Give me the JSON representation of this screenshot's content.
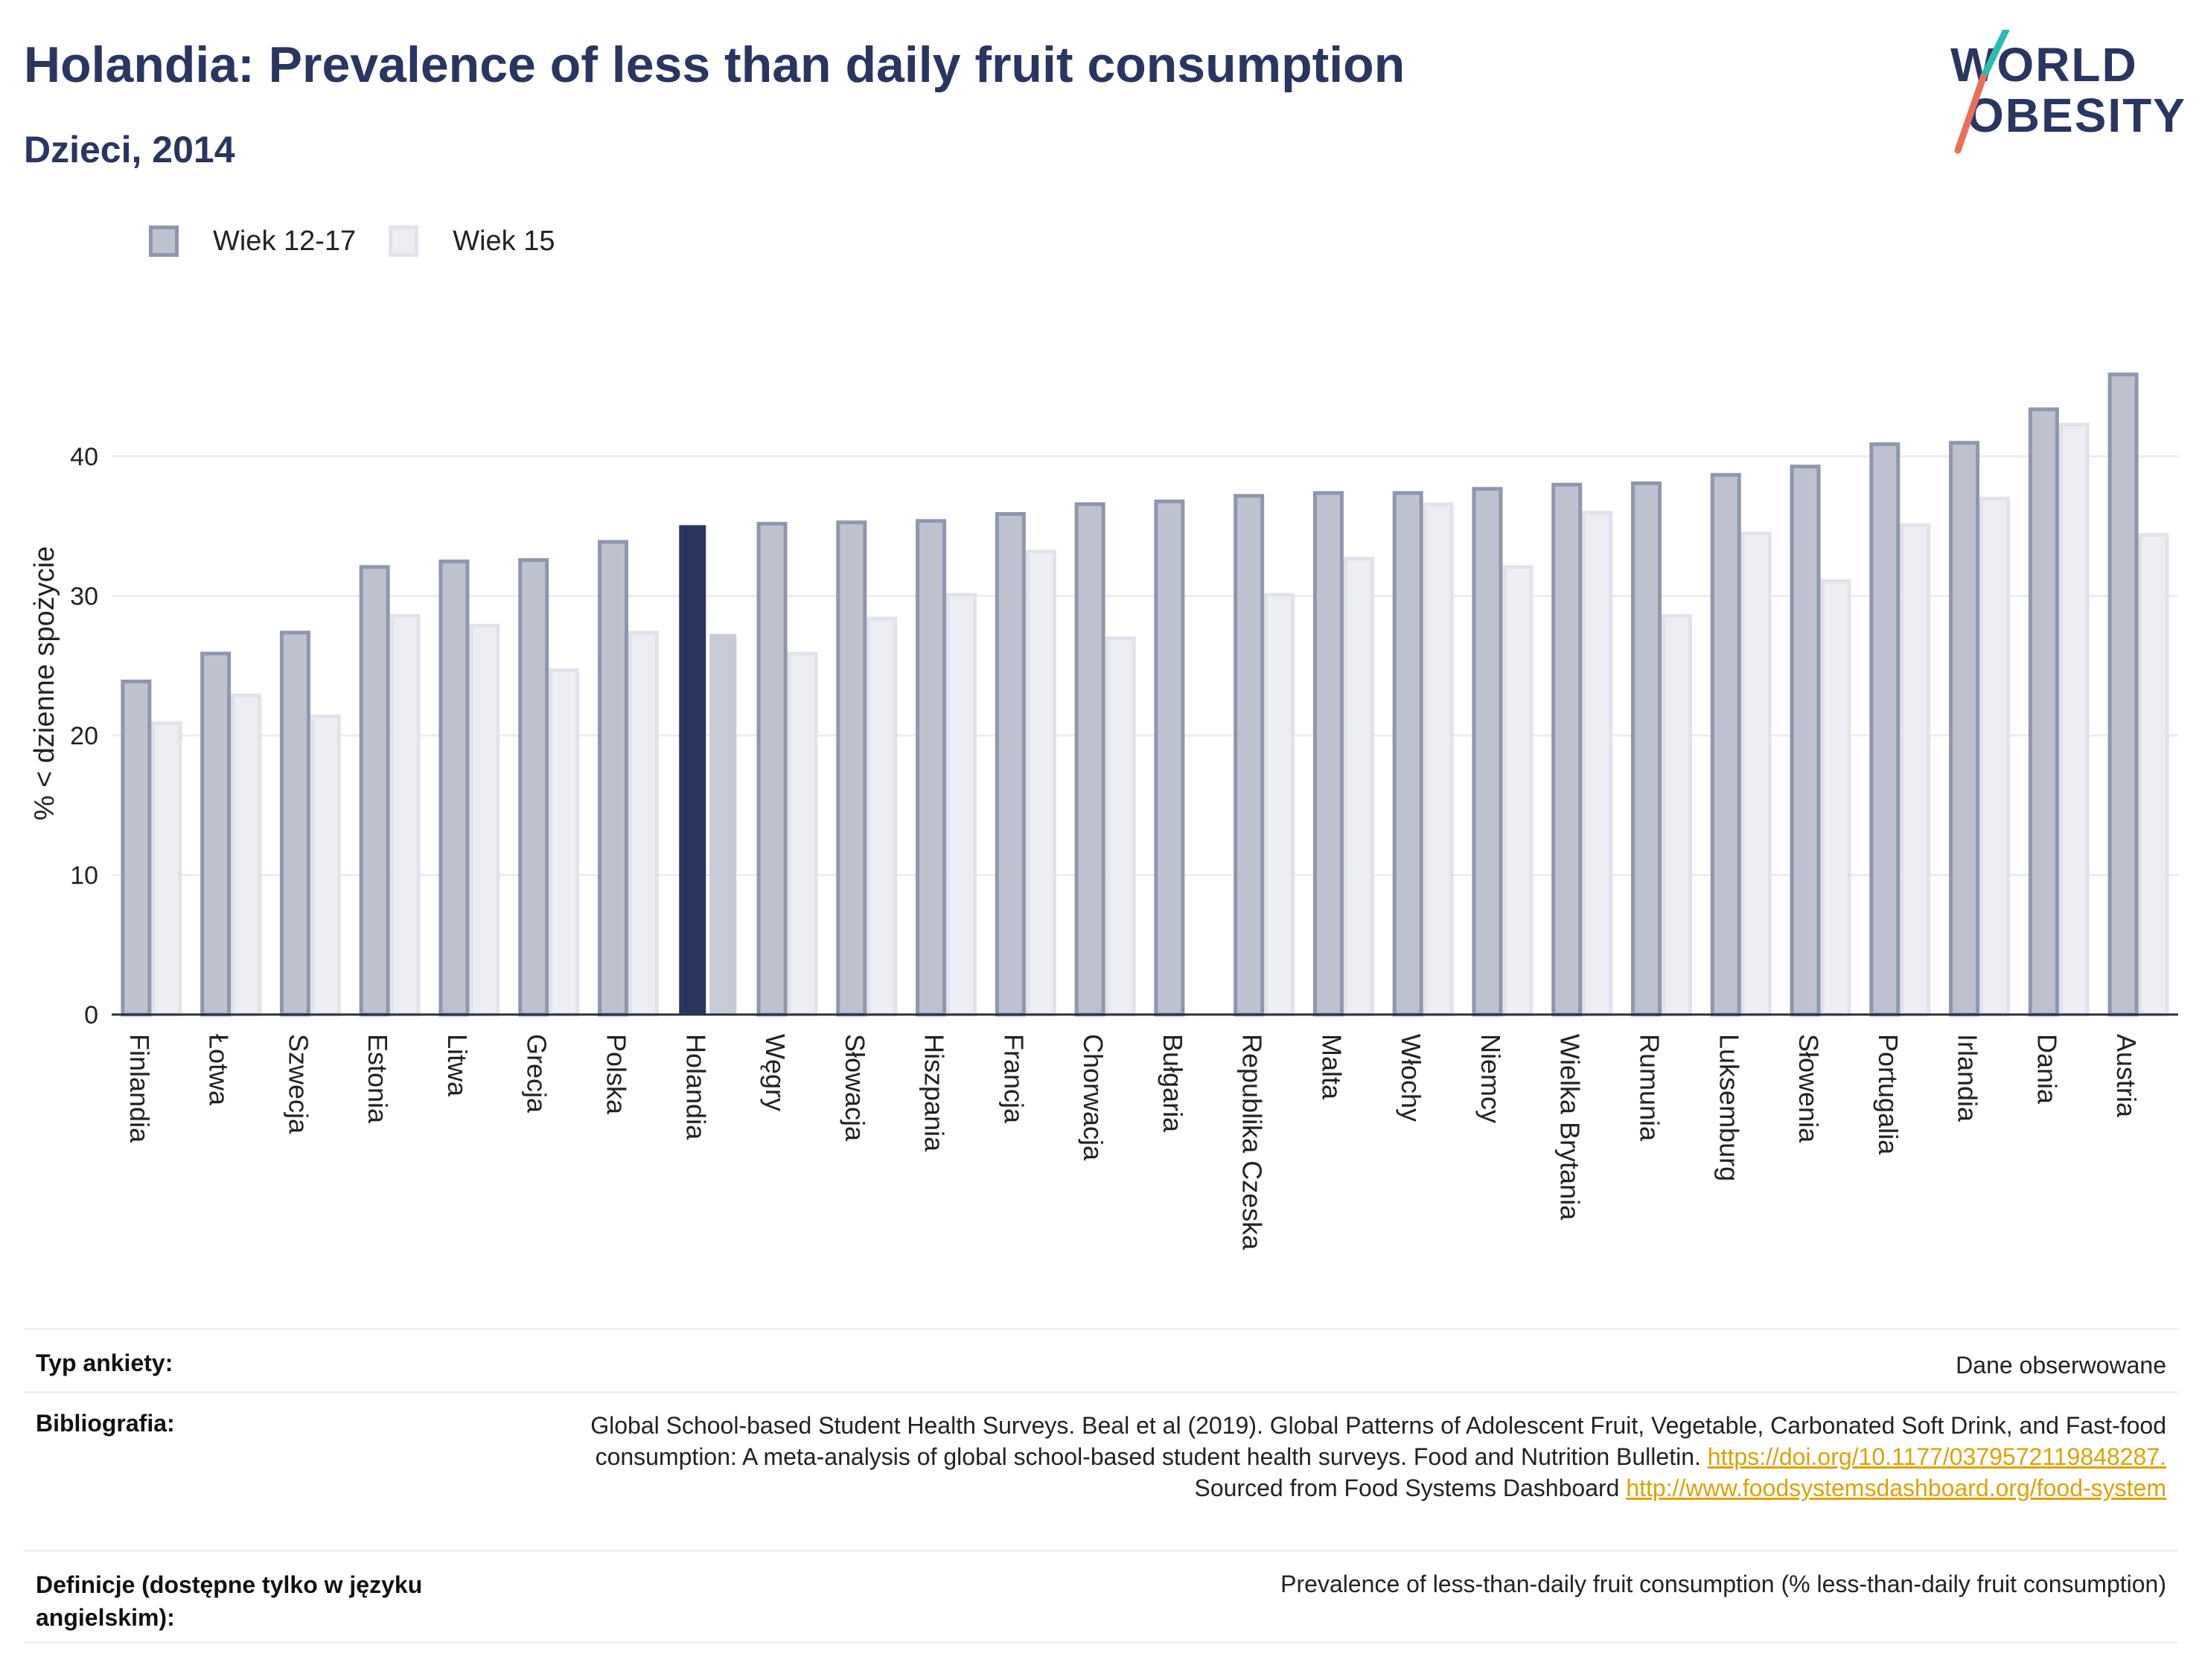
{
  "header": {
    "title": "Holandia: Prevalence of less than daily fruit consumption",
    "subtitle": "Dzieci, 2014"
  },
  "logo": {
    "line1": "WORLD",
    "line2": "OBESITY",
    "colors": {
      "text": "#2a3560",
      "slash_top": "#2bbbb0",
      "slash_bottom": "#e8705a"
    }
  },
  "legend": [
    {
      "label": "Wiek 12-17",
      "color": "#bec2cf"
    },
    {
      "label": "Wiek 15",
      "color": "#eceef3"
    }
  ],
  "chart_data": {
    "type": "bar",
    "ylabel": "% < dzienne spożycie",
    "xlabel": "",
    "ylim": [
      0,
      48
    ],
    "yticks": [
      0,
      10,
      20,
      30,
      40
    ],
    "grid": true,
    "legend_position": "top-left",
    "highlight_category": "Holandia",
    "categories": [
      "Finlandia",
      "Łotwa",
      "Szwecja",
      "Estonia",
      "Litwa",
      "Grecja",
      "Polska",
      "Holandia",
      "Węgry",
      "Słowacja",
      "Hiszpania",
      "Francja",
      "Chorwacja",
      "Bułgaria",
      "Republika Czeska",
      "Malta",
      "Włochy",
      "Niemcy",
      "Wielka Brytania",
      "Rumunia",
      "Luksemburg",
      "Słowenia",
      "Portugalia",
      "Irlandia",
      "Dania",
      "Austria"
    ],
    "series": [
      {
        "name": "Wiek 12-17",
        "values": [
          24.0,
          26.0,
          27.5,
          32.2,
          32.6,
          32.7,
          34.0,
          35.2,
          35.3,
          35.4,
          35.5,
          36.0,
          36.7,
          36.9,
          37.3,
          37.5,
          37.5,
          37.8,
          38.1,
          38.2,
          38.8,
          39.4,
          41.0,
          41.1,
          43.5,
          46.0
        ]
      },
      {
        "name": "Wiek 15",
        "values": [
          21.0,
          23.0,
          21.5,
          28.7,
          28.0,
          24.8,
          27.5,
          27.4,
          26.0,
          28.5,
          30.2,
          33.3,
          27.1,
          null,
          30.2,
          32.8,
          36.7,
          32.2,
          36.1,
          28.7,
          34.6,
          31.2,
          35.2,
          37.1,
          42.4,
          34.5
        ]
      }
    ],
    "colors": {
      "series1_fill": "#bec2cf",
      "series1_stroke": "#8f96ad",
      "series2_fill": "#eceef3",
      "series2_stroke": "#e1e3ea",
      "highlight1": "#2a3560",
      "highlight2": "#c8cad8",
      "grid": "#eaedf3",
      "axis": "#2a2f3f"
    }
  },
  "info": {
    "survey_label": "Typ ankiety:",
    "survey_value": "Dane obserwowane",
    "biblio_label": "Bibliografia:",
    "biblio_text1": "Global School-based Student Health Surveys. Beal et al (2019). Global Patterns of Adolescent Fruit, Vegetable, Carbonated Soft Drink, and Fast-food consumption: A meta-analysis of global school-based student health surveys. Food and Nutrition Bulletin.",
    "biblio_link1": "https://doi.org/10.1177/0379572119848287.",
    "biblio_text2": "Sourced from Food Systems Dashboard",
    "biblio_link2": "http://www.foodsystemsdashboard.org/food-system",
    "def_label": "Definicje (dostępne tylko w języku angielskim):",
    "def_value": "Prevalence of less-than-daily fruit consumption (% less-than-daily fruit consumption)"
  }
}
